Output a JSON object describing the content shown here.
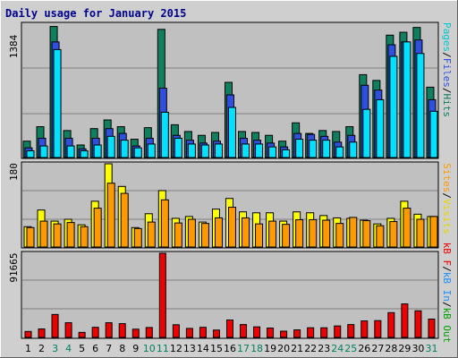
{
  "title": "Daily usage for January 2015",
  "colors": {
    "pages": "#00e0ff",
    "files": "#2f4fdf",
    "hits": "#107f5f",
    "visits": "#ffff00",
    "sites": "#ff9900",
    "kbin": "#1e90ff",
    "kbout": "#00a000",
    "kbf": "#ee0000",
    "weekday": "#000000",
    "weekend": "#00805f"
  },
  "legends": {
    "top": [
      {
        "text": "Pages",
        "color": "#00c8d0"
      },
      {
        "text": "/",
        "color": "#000000"
      },
      {
        "text": "Files",
        "color": "#2f4fdf"
      },
      {
        "text": "/",
        "color": "#000000"
      },
      {
        "text": "Hits",
        "color": "#107f5f"
      }
    ],
    "mid": [
      {
        "text": "Sites",
        "color": "#ff9900"
      },
      {
        "text": "/",
        "color": "#000000"
      },
      {
        "text": "Visits",
        "color": "#e8d800"
      }
    ],
    "bot": [
      {
        "text": "kB F",
        "color": "#ee0000"
      },
      {
        "text": "/",
        "color": "#000000"
      },
      {
        "text": "kB In",
        "color": "#1e90ff"
      },
      {
        "text": "/",
        "color": "#000000"
      },
      {
        "text": "kB Out",
        "color": "#00a000"
      }
    ]
  },
  "chart_data": {
    "type": "bar",
    "title": "Daily usage for January 2015",
    "x": [
      "1",
      "2",
      "3",
      "4",
      "5",
      "6",
      "7",
      "8",
      "9",
      "10",
      "11",
      "12",
      "13",
      "14",
      "15",
      "16",
      "17",
      "18",
      "19",
      "20",
      "21",
      "22",
      "23",
      "24",
      "25",
      "26",
      "27",
      "28",
      "29",
      "30",
      "31"
    ],
    "weekend": [
      3,
      4,
      10,
      11,
      17,
      18,
      24,
      25,
      31
    ],
    "panels": [
      {
        "ymax": 1384,
        "ylabel": "1384",
        "series": [
          {
            "name": "Hits",
            "values": [
              170,
              320,
              1360,
              280,
              130,
              300,
              390,
              320,
              190,
              310,
              1330,
              340,
              270,
              230,
              260,
              780,
              270,
              260,
              230,
              170,
              360,
              250,
              280,
              270,
              320,
              860,
              800,
              1270,
              1300,
              1350,
              730
            ]
          },
          {
            "name": "Files",
            "values": [
              100,
              200,
              1200,
              200,
              90,
              200,
              300,
              250,
              120,
              200,
              720,
              230,
              180,
              150,
              170,
              650,
              200,
              180,
              150,
              110,
              250,
              240,
              220,
              160,
              230,
              750,
              700,
              1170,
              1200,
              1220,
              600
            ]
          },
          {
            "name": "Pages",
            "values": [
              70,
              120,
              1120,
              120,
              70,
              130,
              220,
              180,
              100,
              140,
              470,
              200,
              140,
              130,
              140,
              520,
              140,
              140,
              110,
              80,
              190,
              180,
              180,
              110,
              160,
              500,
              600,
              1050,
              1200,
              1080,
              480
            ]
          }
        ]
      },
      {
        "ymax": 180,
        "ylabel": "180",
        "series": [
          {
            "name": "Visits",
            "values": [
              44,
              80,
              56,
              60,
              48,
              99,
              180,
              131,
              42,
              72,
              122,
              62,
              66,
              54,
              82,
              105,
              76,
              74,
              74,
              56,
              76,
              74,
              68,
              63,
              62,
              58,
              50,
              62,
              99,
              71,
              66
            ]
          },
          {
            "name": "Sites",
            "values": [
              42,
              56,
              50,
              53,
              44,
              84,
              138,
              116,
              40,
              54,
              102,
              52,
              60,
              51,
              63,
              86,
              63,
              50,
              56,
              49,
              59,
              59,
              58,
              51,
              64,
              57,
              46,
              55,
              84,
              60,
              66
            ]
          }
        ]
      },
      {
        "ymax": 91665,
        "ylabel": "91665",
        "series": [
          {
            "name": "kB F",
            "values": [
              6500,
              9200,
              25000,
              16000,
              5500,
              11000,
              16000,
              15000,
              9000,
              10800,
              91665,
              13800,
              9800,
              11000,
              8000,
              19000,
              14000,
              11500,
              10200,
              6800,
              8200,
              10500,
              10500,
              12500,
              14000,
              18000,
              18300,
              27000,
              36500,
              29000,
              20000
            ]
          }
        ]
      }
    ]
  }
}
